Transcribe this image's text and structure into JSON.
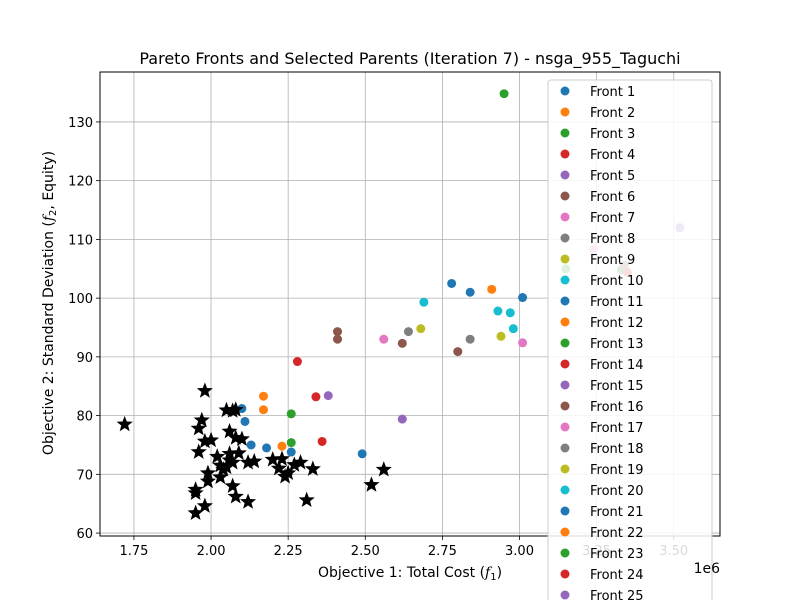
{
  "chart_data": {
    "type": "scatter",
    "title": "Pareto Fronts and Selected Parents (Iteration 7) - nsga_955_Taguchi",
    "xlabel_main": "Objective 1: Total Cost (",
    "xlabel_sym": "f",
    "xlabel_sub": "1",
    "xlabel_end": ")",
    "ylabel_main": "Objective 2: Standard Deviation (",
    "ylabel_sym": "f",
    "ylabel_sub": "2",
    "ylabel_end": ", Equity)",
    "x_scale_label": "1e6",
    "xlim": [
      1.64,
      3.65
    ],
    "ylim": [
      59.5,
      138.5
    ],
    "x_ticks": [
      1.75,
      2.0,
      2.25,
      2.5,
      2.75,
      3.0,
      3.25,
      3.5
    ],
    "x_tick_labels": [
      "1.75",
      "2.00",
      "2.25",
      "2.50",
      "2.75",
      "3.00",
      "3.25",
      "3.50"
    ],
    "y_ticks": [
      60,
      70,
      80,
      90,
      100,
      110,
      120,
      130
    ],
    "y_tick_labels": [
      "60",
      "70",
      "80",
      "90",
      "100",
      "110",
      "120",
      "130"
    ],
    "grid": true,
    "legend_position": "right",
    "series": [
      {
        "name": "Front 1",
        "color": "#1f77b4",
        "points": [
          [
            2.1,
            81.2
          ],
          [
            2.11,
            79.0
          ],
          [
            2.13,
            75.0
          ],
          [
            2.18,
            74.5
          ],
          [
            2.26,
            73.8
          ],
          [
            2.49,
            73.5
          ]
        ]
      },
      {
        "name": "Front 2",
        "color": "#ff7f0e",
        "points": [
          [
            2.17,
            83.3
          ],
          [
            2.17,
            81.0
          ],
          [
            2.23,
            74.8
          ]
        ]
      },
      {
        "name": "Front 3",
        "color": "#2ca02c",
        "points": [
          [
            2.26,
            80.3
          ],
          [
            2.26,
            75.4
          ],
          [
            2.95,
            134.8
          ]
        ]
      },
      {
        "name": "Front 4",
        "color": "#d62728",
        "points": [
          [
            2.28,
            89.2
          ],
          [
            2.34,
            83.2
          ],
          [
            2.36,
            75.6
          ]
        ]
      },
      {
        "name": "Front 5",
        "color": "#9467bd",
        "points": [
          [
            2.38,
            83.4
          ],
          [
            2.62,
            79.4
          ]
        ]
      },
      {
        "name": "Front 6",
        "color": "#8c564b",
        "points": [
          [
            2.41,
            94.3
          ],
          [
            2.41,
            93.0
          ],
          [
            2.62,
            92.3
          ],
          [
            2.8,
            90.9
          ]
        ]
      },
      {
        "name": "Front 7",
        "color": "#e377c2",
        "points": [
          [
            2.56,
            93.0
          ],
          [
            3.01,
            92.4
          ]
        ]
      },
      {
        "name": "Front 8",
        "color": "#7f7f7f",
        "points": [
          [
            2.64,
            94.3
          ],
          [
            2.84,
            93.0
          ]
        ]
      },
      {
        "name": "Front 9",
        "color": "#bcbd22",
        "points": [
          [
            2.68,
            94.8
          ],
          [
            2.94,
            93.5
          ]
        ]
      },
      {
        "name": "Front 10",
        "color": "#17becf",
        "points": [
          [
            2.69,
            99.3
          ],
          [
            2.93,
            97.8
          ],
          [
            2.97,
            97.5
          ],
          [
            2.98,
            94.8
          ]
        ]
      },
      {
        "name": "Front 11",
        "color": "#1f77b4",
        "points": [
          [
            2.78,
            102.5
          ],
          [
            2.84,
            101.0
          ],
          [
            3.01,
            100.1
          ]
        ]
      },
      {
        "name": "Front 12",
        "color": "#ff7f0e",
        "points": [
          [
            2.91,
            101.5
          ]
        ]
      },
      {
        "name": "Front 13",
        "color": "#2ca02c",
        "points": [
          [
            3.15,
            105.0
          ],
          [
            3.33,
            104.8
          ]
        ]
      },
      {
        "name": "Front 14",
        "color": "#d62728",
        "points": [
          [
            3.35,
            104.4
          ]
        ]
      },
      {
        "name": "Front 15",
        "color": "#9467bd",
        "points": [
          [
            3.52,
            112.0
          ]
        ]
      },
      {
        "name": "Front 16",
        "color": "#8c564b",
        "points": [
          [
            3.34,
            105.6
          ]
        ]
      },
      {
        "name": "Front 17",
        "color": "#e377c2",
        "points": [
          [
            3.24,
            108.3
          ]
        ]
      },
      {
        "name": "Front 18",
        "color": "#7f7f7f",
        "points": []
      },
      {
        "name": "Front 19",
        "color": "#bcbd22",
        "points": []
      },
      {
        "name": "Front 20",
        "color": "#17becf",
        "points": []
      },
      {
        "name": "Front 21",
        "color": "#1f77b4",
        "points": []
      },
      {
        "name": "Front 22",
        "color": "#ff7f0e",
        "points": []
      },
      {
        "name": "Front 23",
        "color": "#2ca02c",
        "points": []
      },
      {
        "name": "Front 24",
        "color": "#d62728",
        "points": []
      },
      {
        "name": "Front 25",
        "color": "#9467bd",
        "points": []
      }
    ],
    "selected_parents": {
      "marker": "star",
      "color": "#000000",
      "points": [
        [
          1.72,
          78.5
        ],
        [
          1.98,
          84.2
        ],
        [
          1.97,
          79.2
        ],
        [
          1.96,
          77.8
        ],
        [
          1.98,
          75.6
        ],
        [
          1.96,
          73.8
        ],
        [
          1.99,
          70.2
        ],
        [
          1.99,
          68.8
        ],
        [
          1.95,
          67.4
        ],
        [
          1.95,
          66.8
        ],
        [
          1.98,
          64.6
        ],
        [
          1.95,
          63.4
        ],
        [
          2.0,
          75.8
        ],
        [
          2.02,
          73.0
        ],
        [
          2.03,
          71.5
        ],
        [
          2.05,
          80.9
        ],
        [
          2.07,
          80.8
        ],
        [
          2.08,
          81.0
        ],
        [
          2.06,
          77.3
        ],
        [
          2.08,
          76.2
        ],
        [
          2.1,
          76.0
        ],
        [
          2.06,
          73.5
        ],
        [
          2.07,
          72.0
        ],
        [
          2.09,
          73.6
        ],
        [
          2.04,
          70.8
        ],
        [
          2.05,
          71.2
        ],
        [
          2.06,
          72.4
        ],
        [
          2.03,
          69.5
        ],
        [
          2.07,
          68.0
        ],
        [
          2.08,
          66.2
        ],
        [
          2.12,
          65.3
        ],
        [
          2.12,
          72.0
        ],
        [
          2.14,
          72.2
        ],
        [
          2.2,
          72.5
        ],
        [
          2.22,
          71.0
        ],
        [
          2.23,
          72.6
        ],
        [
          2.25,
          70.2
        ],
        [
          2.24,
          69.6
        ],
        [
          2.27,
          71.6
        ],
        [
          2.29,
          72.0
        ],
        [
          2.31,
          65.6
        ],
        [
          2.33,
          70.9
        ],
        [
          2.52,
          68.2
        ],
        [
          2.56,
          70.8
        ]
      ]
    }
  }
}
